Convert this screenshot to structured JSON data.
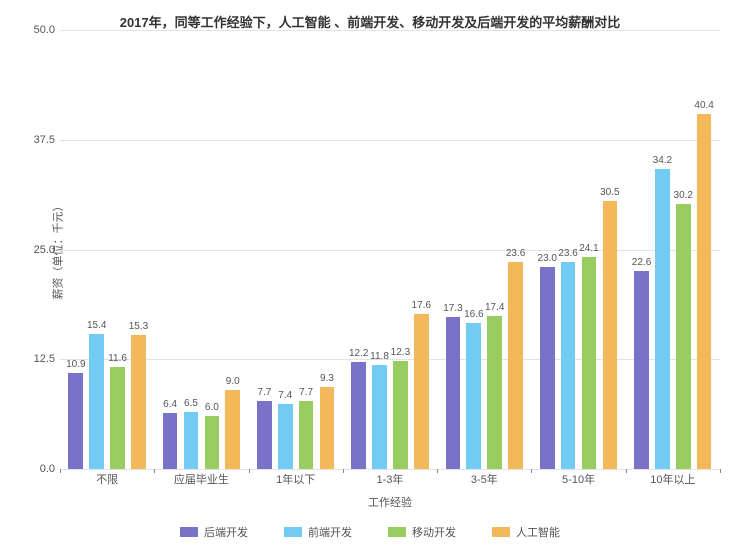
{
  "chart": {
    "type": "bar",
    "title": "2017年，同等工作经验下，人工智能 、前端开发、移动开发及后端开发的平均薪酬对比",
    "title_fontsize": 13,
    "y_axis_title": "薪资（单位：千元）",
    "x_axis_title": "工作经验",
    "ylim": [
      0,
      50
    ],
    "ytick_step": 12.5,
    "yticks": [
      "0.0",
      "12.5",
      "25.0",
      "37.5",
      "50.0"
    ],
    "background_color": "#ffffff",
    "grid_color": "#e3e3e3",
    "axis_color": "#888888",
    "label_color": "#555555",
    "label_fontsize": 11,
    "value_label_fontsize": 10,
    "bar_gap_ratio": 0.08,
    "group_gap_ratio": 0.18,
    "categories": [
      "不限",
      "应届毕业生",
      "1年以下",
      "1-3年",
      "3-5年",
      "5-10年",
      "10年以上"
    ],
    "series": [
      {
        "name": "后端开发",
        "color": "#7972c9",
        "values": [
          10.9,
          6.4,
          7.7,
          12.2,
          17.3,
          23.0,
          22.6
        ]
      },
      {
        "name": "前端开发",
        "color": "#72cbf2",
        "values": [
          15.4,
          6.5,
          7.4,
          11.8,
          16.6,
          23.6,
          34.2
        ]
      },
      {
        "name": "移动开发",
        "color": "#98cc5f",
        "values": [
          11.6,
          6.0,
          7.7,
          12.3,
          17.4,
          24.1,
          30.2
        ]
      },
      {
        "name": "人工智能",
        "color": "#f2b85a",
        "values": [
          15.3,
          9.0,
          9.3,
          17.6,
          23.6,
          30.5,
          40.4
        ]
      }
    ]
  },
  "legend": {
    "items": [
      {
        "label": "后端开发",
        "color": "#7972c9"
      },
      {
        "label": "前端开发",
        "color": "#72cbf2"
      },
      {
        "label": "移动开发",
        "color": "#98cc5f"
      },
      {
        "label": "人工智能",
        "color": "#f2b85a"
      }
    ]
  }
}
